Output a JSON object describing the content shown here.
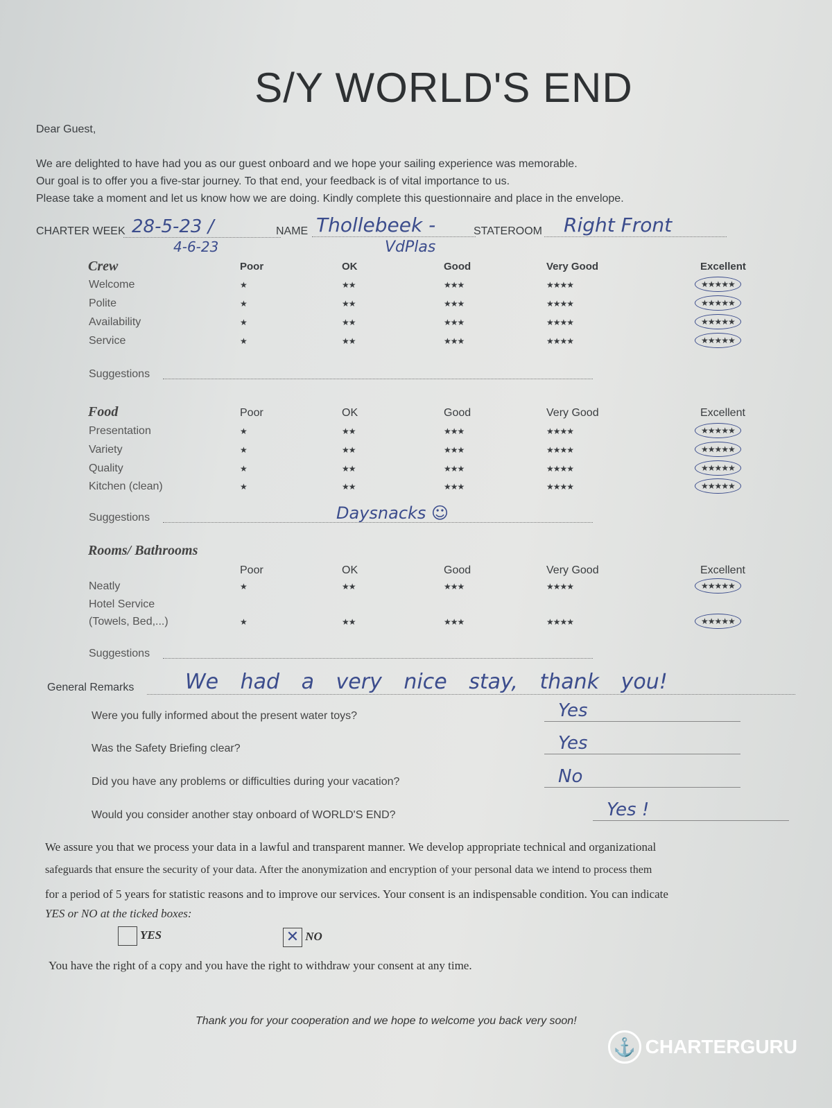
{
  "title": "S/Y WORLD'S END",
  "greeting": "Dear Guest,",
  "intro": [
    "We are delighted to have had you as our guest onboard and we hope your sailing experience was memorable.",
    "Our goal is to offer you a five-star journey. To that end, your feedback is of vital importance to us.",
    "Please take a moment and let us know how we are doing. Kindly complete this questionnaire and place in the envelope."
  ],
  "fields": {
    "charter_week_label": "CHARTER WEEK",
    "charter_week_value": "28-5-23 /",
    "charter_week_value2": "4-6-23",
    "name_label": "NAME",
    "name_value": "Thollebeek -",
    "name_value2": "VdPlas",
    "stateroom_label": "STATEROOM",
    "stateroom_value": "Right Front"
  },
  "rating_columns": [
    "Poor",
    "OK",
    "Good",
    "Very Good",
    "Excellent"
  ],
  "rating_stars": [
    "★",
    "★★",
    "★★★",
    "★★★★",
    "★★★★★"
  ],
  "suggestions_label": "Suggestions",
  "sections": [
    {
      "title": "Crew",
      "items": [
        {
          "label": "Welcome",
          "rating": "Excellent"
        },
        {
          "label": "Polite",
          "rating": "Excellent"
        },
        {
          "label": "Availability",
          "rating": "Excellent"
        },
        {
          "label": "Service",
          "rating": "Excellent"
        }
      ],
      "suggestion": ""
    },
    {
      "title": "Food",
      "items": [
        {
          "label": "Presentation",
          "rating": "Excellent"
        },
        {
          "label": "Variety",
          "rating": "Excellent"
        },
        {
          "label": "Quality",
          "rating": "Excellent"
        },
        {
          "label": "Kitchen (clean)",
          "rating": "Excellent"
        }
      ],
      "suggestion": "Daysnacks ☺"
    },
    {
      "title": "Rooms/ Bathrooms",
      "items": [
        {
          "label": "Neatly",
          "rating": "Excellent"
        },
        {
          "label": "Hotel Service",
          "label2": "(Towels, Bed,...)",
          "rating": "Excellent"
        }
      ],
      "suggestion": ""
    }
  ],
  "general_remarks_label": "General Remarks",
  "general_remarks_value": "We had a very nice stay, thank you!",
  "questions": [
    {
      "q": "Were you fully informed about the present water toys?",
      "a": "Yes"
    },
    {
      "q": "Was the Safety Briefing clear?",
      "a": "Yes"
    },
    {
      "q": "Did you have any problems or difficulties during your vacation?",
      "a": "No"
    },
    {
      "q": "Would you consider another stay onboard of WORLD'S END?",
      "a": "Yes !"
    }
  ],
  "privacy": [
    "We assure you that we process your data in a lawful and transparent manner. We develop appropriate technical and organizational",
    "safeguards that ensure the security of your data. After the anonymization and encryption of your personal data we intend to process them",
    "for a period of 5 years for statistic reasons and to improve our services. Your consent is an indispensable condition. You can indicate",
    "YES or NO at the ticked boxes:"
  ],
  "consent": {
    "yes_label": "YES",
    "no_label": "NO",
    "yes_checked": false,
    "no_checked": true,
    "mark": "✕"
  },
  "rights": "You have the right of a copy and you have the right to withdraw your consent at any time.",
  "closing": "Thank you for your cooperation and we hope to welcome you back very soon!",
  "watermark": {
    "text": "CHARTERGURU",
    "icon": "anchor-icon"
  }
}
